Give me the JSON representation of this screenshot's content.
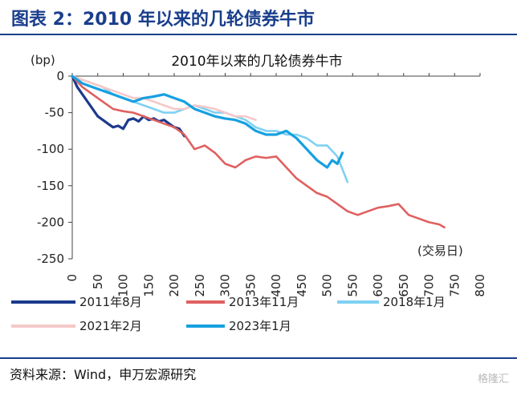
{
  "header": {
    "title": "图表 2：2010 年以来的几轮债券牛市"
  },
  "source": {
    "text": "资料来源：Wind，申万宏源研究"
  },
  "watermark": {
    "text": "格隆汇"
  },
  "chart_data": {
    "type": "line",
    "title": "2010年以来的几轮债券牛市",
    "ylabel": "(bp)",
    "xlabel": "(交易日)",
    "xlim": [
      0,
      800
    ],
    "ylim": [
      -250,
      0
    ],
    "xticks": [
      0,
      50,
      100,
      150,
      200,
      250,
      300,
      350,
      400,
      450,
      500,
      550,
      600,
      650,
      700,
      750,
      800
    ],
    "yticks": [
      0,
      -50,
      -100,
      -150,
      -200,
      -250
    ],
    "grid": false,
    "legend_position": "bottom",
    "series": [
      {
        "name": "2011年8月",
        "color": "#1b3a8c",
        "x": [
          0,
          10,
          20,
          30,
          40,
          50,
          60,
          70,
          80,
          90,
          100,
          110,
          120,
          130,
          140,
          150,
          160,
          170,
          180,
          190,
          200,
          210,
          220
        ],
        "y": [
          0,
          -15,
          -25,
          -35,
          -45,
          -55,
          -60,
          -65,
          -70,
          -68,
          -72,
          -60,
          -58,
          -62,
          -55,
          -60,
          -58,
          -62,
          -60,
          -65,
          -70,
          -72,
          -82
        ]
      },
      {
        "name": "2013年11月",
        "color": "#e06060",
        "x": [
          0,
          20,
          40,
          60,
          80,
          100,
          120,
          140,
          160,
          180,
          200,
          220,
          240,
          260,
          280,
          300,
          320,
          340,
          360,
          380,
          400,
          420,
          440,
          460,
          480,
          500,
          520,
          540,
          560,
          580,
          600,
          620,
          640,
          660,
          680,
          700,
          720,
          730
        ],
        "y": [
          0,
          -15,
          -25,
          -35,
          -45,
          -48,
          -50,
          -55,
          -60,
          -65,
          -70,
          -80,
          -100,
          -95,
          -105,
          -120,
          -125,
          -115,
          -110,
          -112,
          -110,
          -125,
          -140,
          -150,
          -160,
          -165,
          -175,
          -185,
          -190,
          -185,
          -180,
          -178,
          -175,
          -190,
          -195,
          -200,
          -203,
          -207
        ]
      },
      {
        "name": "2018年1月",
        "color": "#7ed1f2",
        "x": [
          0,
          20,
          40,
          60,
          80,
          100,
          120,
          140,
          160,
          180,
          200,
          220,
          240,
          260,
          280,
          300,
          320,
          340,
          360,
          380,
          400,
          420,
          440,
          460,
          480,
          500,
          520,
          540
        ],
        "y": [
          0,
          -5,
          -10,
          -15,
          -25,
          -30,
          -35,
          -40,
          -45,
          -50,
          -50,
          -45,
          -40,
          -45,
          -50,
          -50,
          -55,
          -60,
          -70,
          -75,
          -75,
          -80,
          -80,
          -85,
          -95,
          -95,
          -110,
          -145
        ]
      },
      {
        "name": "2021年2月",
        "color": "#f5c8c8",
        "x": [
          0,
          20,
          40,
          60,
          80,
          100,
          120,
          140,
          160,
          180,
          200,
          220,
          240,
          260,
          280,
          300,
          320,
          340,
          360
        ],
        "y": [
          0,
          -5,
          -10,
          -15,
          -20,
          -25,
          -30,
          -30,
          -35,
          -40,
          -45,
          -45,
          -40,
          -42,
          -45,
          -50,
          -55,
          -55,
          -60
        ]
      },
      {
        "name": "2023年1月",
        "color": "#16a0e0",
        "x": [
          0,
          20,
          40,
          60,
          80,
          100,
          120,
          140,
          160,
          180,
          200,
          220,
          240,
          260,
          280,
          300,
          320,
          340,
          360,
          380,
          400,
          420,
          440,
          460,
          480,
          500,
          510,
          520,
          530
        ],
        "y": [
          0,
          -10,
          -15,
          -20,
          -25,
          -30,
          -35,
          -30,
          -28,
          -25,
          -30,
          -35,
          -45,
          -50,
          -55,
          -58,
          -60,
          -65,
          -75,
          -80,
          -80,
          -75,
          -85,
          -100,
          -115,
          -125,
          -115,
          -120,
          -105
        ]
      }
    ]
  }
}
